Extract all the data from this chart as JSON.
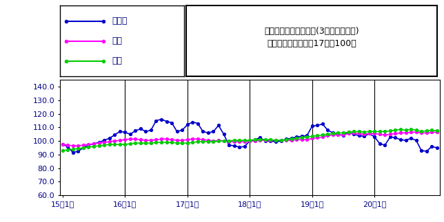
{
  "title_line1": "鉱工業生産指数の推移(3ヶ月移動平均)",
  "title_line2": "（季節調整済、平成17年＝100）",
  "legend_labels": [
    "鳥取県",
    "中国",
    "全国"
  ],
  "line_colors": [
    "#0000CC",
    "#FF00FF",
    "#00CC00"
  ],
  "ylim": [
    60.0,
    145.0
  ],
  "yticks": [
    60.0,
    70.0,
    80.0,
    90.0,
    100.0,
    110.0,
    120.0,
    130.0,
    140.0
  ],
  "xtick_labels": [
    "15年1月",
    "16年1月",
    "17年1月",
    "18年1月",
    "19年1月",
    "20年1月"
  ],
  "xtick_positions": [
    0,
    12,
    24,
    36,
    48,
    60
  ],
  "vline_positions": [
    12,
    24,
    36,
    48,
    60
  ],
  "n_points": 73,
  "tottori": [
    97.5,
    96.0,
    91.5,
    92.5,
    95.0,
    97.0,
    98.0,
    99.0,
    100.5,
    102.0,
    104.5,
    107.0,
    106.5,
    105.0,
    107.5,
    109.0,
    107.0,
    108.0,
    115.0,
    116.0,
    114.5,
    113.5,
    107.0,
    108.0,
    112.0,
    114.0,
    113.0,
    107.0,
    106.0,
    107.0,
    111.5,
    105.0,
    97.0,
    96.5,
    95.5,
    96.0,
    100.0,
    101.0,
    102.5,
    100.0,
    100.0,
    99.5,
    100.0,
    101.5,
    102.0,
    103.0,
    103.5,
    104.0,
    111.0,
    111.5,
    112.5,
    108.0,
    106.0,
    105.0,
    104.0,
    106.5,
    105.0,
    104.0,
    103.5,
    105.5,
    103.0,
    98.0,
    97.0,
    103.0,
    102.5,
    101.0,
    100.5,
    102.0,
    100.5,
    93.0,
    92.5,
    96.0,
    95.0
  ],
  "chugoku": [
    97.5,
    97.0,
    96.5,
    96.5,
    97.0,
    97.5,
    98.0,
    98.5,
    99.0,
    99.5,
    100.0,
    100.5,
    101.0,
    101.5,
    101.5,
    101.0,
    100.5,
    100.5,
    101.0,
    101.5,
    101.5,
    101.0,
    100.5,
    100.5,
    101.0,
    101.5,
    101.5,
    101.0,
    100.5,
    100.0,
    100.5,
    100.0,
    99.5,
    99.5,
    99.5,
    99.5,
    100.0,
    100.0,
    100.5,
    100.5,
    100.5,
    100.5,
    100.5,
    100.5,
    100.5,
    101.0,
    101.0,
    101.0,
    102.0,
    102.5,
    103.0,
    104.0,
    104.5,
    104.5,
    104.5,
    105.5,
    106.0,
    105.5,
    105.0,
    105.5,
    105.5,
    105.0,
    104.5,
    105.0,
    105.5,
    106.0,
    106.0,
    106.5,
    106.5,
    106.0,
    106.0,
    106.5,
    106.5
  ],
  "zenkoku": [
    93.0,
    93.5,
    94.0,
    94.5,
    95.0,
    95.5,
    96.0,
    96.5,
    97.0,
    97.5,
    97.5,
    97.5,
    97.5,
    98.0,
    98.5,
    98.5,
    98.5,
    98.5,
    99.0,
    99.0,
    99.0,
    99.0,
    98.5,
    98.5,
    98.5,
    99.0,
    99.5,
    99.5,
    99.5,
    99.5,
    100.0,
    100.0,
    100.0,
    100.5,
    100.5,
    100.5,
    100.5,
    101.0,
    101.0,
    101.0,
    101.0,
    100.5,
    100.5,
    101.0,
    101.5,
    102.0,
    102.5,
    103.0,
    103.5,
    104.0,
    104.5,
    105.0,
    105.5,
    106.0,
    106.0,
    106.5,
    107.0,
    107.0,
    106.5,
    107.0,
    107.0,
    107.0,
    107.0,
    107.5,
    108.0,
    108.5,
    108.0,
    108.5,
    108.0,
    107.0,
    107.5,
    108.0,
    107.5
  ],
  "background_color": "#FFFFFF",
  "text_color": "#000080",
  "marker": "o",
  "markersize": 3,
  "linewidth": 1.2
}
